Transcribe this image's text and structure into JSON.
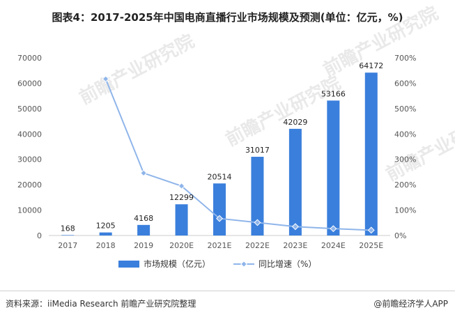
{
  "title": "图表4：2017-2025年中国电商直播行业市场规模及预测(单位：亿元，%)",
  "source": "资料来源：iiMedia Research 前瞻产业研究院整理",
  "brand": "@前瞻经济学人APP",
  "watermark": "前瞻产业研究院",
  "colors": {
    "bar": "#3a7fdc",
    "line": "#8fb5ea",
    "axis": "#cccccc"
  },
  "chart_data": {
    "type": "bar",
    "categories": [
      "2017",
      "2018",
      "2019",
      "2020E",
      "2021E",
      "2022E",
      "2023E",
      "2024E",
      "2025E"
    ],
    "series": [
      {
        "name": "市场规模（亿元）",
        "type": "bar",
        "axis": "left",
        "values": [
          168,
          1205,
          4168,
          12299,
          20514,
          31017,
          42029,
          53166,
          64172
        ]
      },
      {
        "name": "同比增速（%）",
        "type": "line",
        "axis": "right",
        "values": [
          null,
          617,
          246,
          195,
          67,
          51,
          35,
          27,
          21
        ]
      }
    ],
    "ylim_left": [
      0,
      70000
    ],
    "yticks_left": [
      "0",
      "10000",
      "20000",
      "30000",
      "40000",
      "50000",
      "60000",
      "70000"
    ],
    "ylim_right": [
      0,
      700
    ],
    "yticks_right": [
      "0%",
      "100%",
      "200%",
      "300%",
      "400%",
      "500%",
      "600%",
      "700%"
    ],
    "legend_position": "bottom",
    "grid": false
  }
}
